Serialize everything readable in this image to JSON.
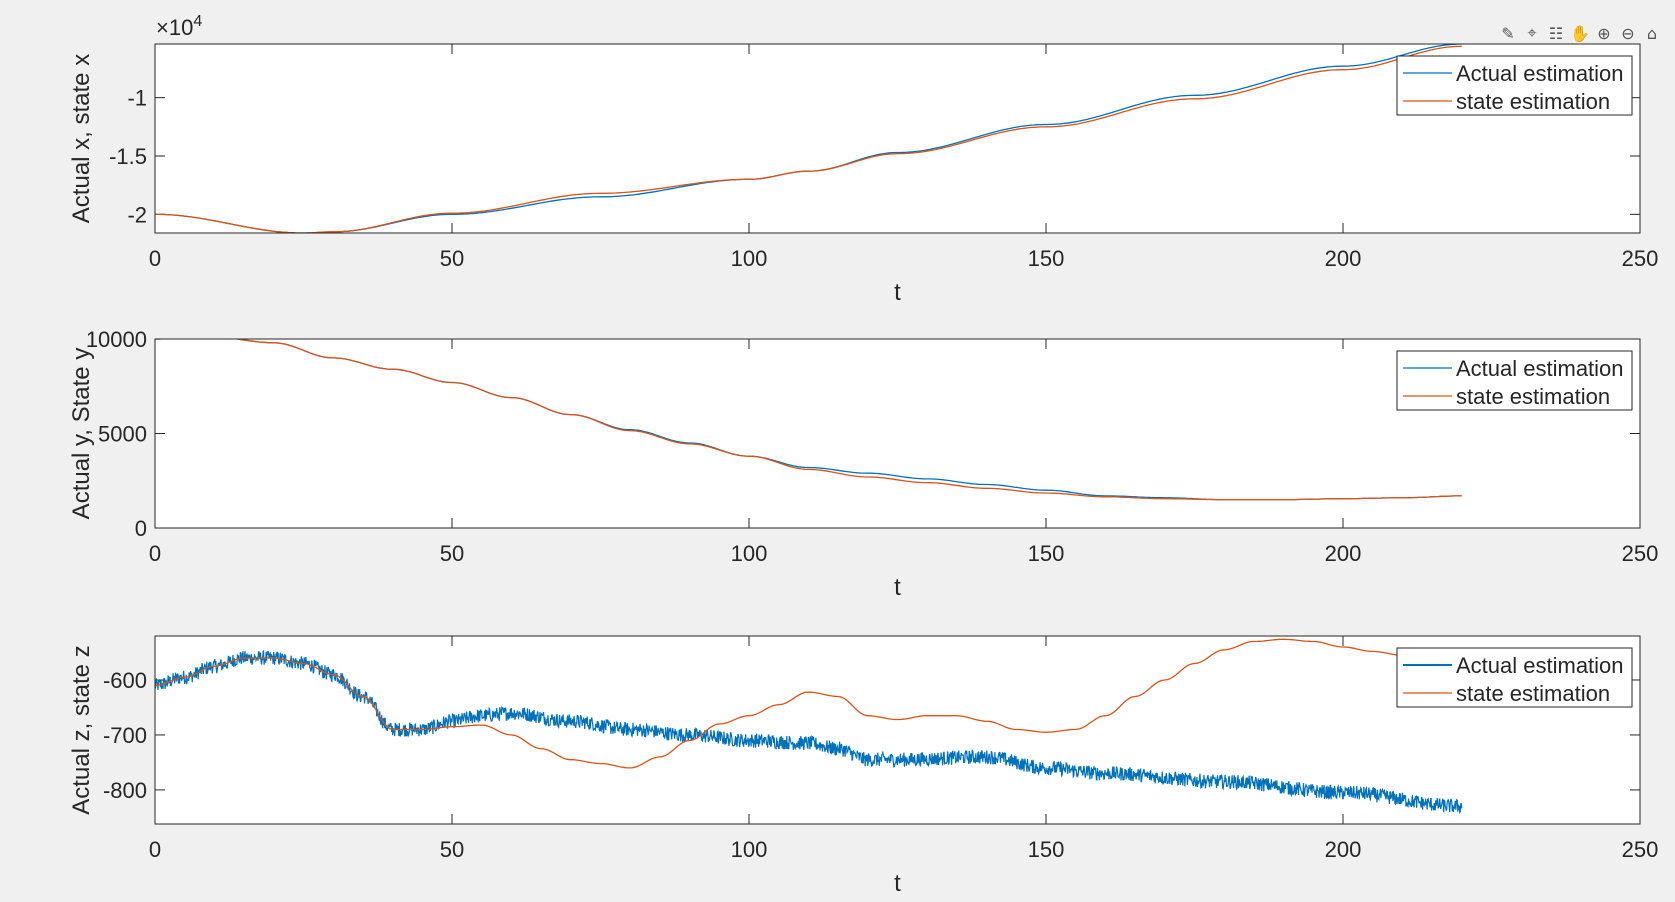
{
  "figure": {
    "background": "#f0f0f0",
    "toolbar": [
      {
        "name": "brush-icon",
        "glyph": "✎"
      },
      {
        "name": "data-tips-icon",
        "glyph": "⌖"
      },
      {
        "name": "legend-icon",
        "glyph": "☷"
      },
      {
        "name": "pan-hand-icon",
        "glyph": "✋"
      },
      {
        "name": "zoom-in-icon",
        "glyph": "⊕"
      },
      {
        "name": "zoom-out-icon",
        "glyph": "⊖"
      },
      {
        "name": "home-icon",
        "glyph": "⌂"
      }
    ]
  },
  "colors": {
    "actual": "#0072bd",
    "state": "#d95319"
  },
  "chart_data": [
    {
      "type": "line",
      "xlabel": "t",
      "ylabel": "Actual x, state x",
      "xlim": [
        0,
        250
      ],
      "ylim": [
        -21600,
        -5400
      ],
      "xticks": [
        0,
        50,
        100,
        150,
        200,
        250
      ],
      "yticks": [
        -10000,
        -15000,
        -20000
      ],
      "ytick_labels": [
        "-1",
        "-1.5",
        "-2"
      ],
      "exponent_label": "×10",
      "exponent_power": "4",
      "legend": {
        "position": "top-right"
      },
      "series": [
        {
          "name": "Actual estimation",
          "color": "#0072bd",
          "x": [
            0,
            25,
            30,
            50,
            75,
            100,
            110,
            125,
            150,
            175,
            200,
            220
          ],
          "y": [
            -20000,
            -21600,
            -21500,
            -20000,
            -18500,
            -17000,
            -16300,
            -14700,
            -12300,
            -9800,
            -7300,
            -5400
          ]
        },
        {
          "name": "state estimation",
          "color": "#d95319",
          "x": [
            0,
            25,
            30,
            50,
            75,
            100,
            110,
            125,
            150,
            175,
            200,
            220
          ],
          "y": [
            -20000,
            -21600,
            -21500,
            -19900,
            -18200,
            -17000,
            -16300,
            -14800,
            -12500,
            -10100,
            -7600,
            -5600
          ]
        }
      ]
    },
    {
      "type": "line",
      "xlabel": "t",
      "ylabel": "Actual y, State y",
      "xlim": [
        0,
        250
      ],
      "ylim": [
        0,
        10000
      ],
      "xticks": [
        0,
        50,
        100,
        150,
        200,
        250
      ],
      "yticks": [
        10000,
        5000,
        0
      ],
      "ytick_labels": [
        "10000",
        "5000",
        "0"
      ],
      "legend": {
        "position": "top-right"
      },
      "series": [
        {
          "name": "Actual estimation",
          "color": "#0072bd",
          "x": [
            0,
            10,
            20,
            30,
            40,
            50,
            60,
            70,
            80,
            90,
            100,
            110,
            120,
            130,
            140,
            150,
            160,
            170,
            180,
            190,
            200,
            210,
            220
          ],
          "y": [
            10000,
            10100,
            9800,
            9000,
            8400,
            7700,
            6900,
            6000,
            5200,
            4500,
            3800,
            3200,
            2900,
            2600,
            2300,
            2000,
            1700,
            1600,
            1500,
            1500,
            1550,
            1600,
            1700
          ]
        },
        {
          "name": "state estimation",
          "color": "#d95319",
          "x": [
            0,
            10,
            20,
            30,
            40,
            50,
            60,
            70,
            80,
            90,
            100,
            110,
            120,
            130,
            140,
            150,
            160,
            170,
            180,
            190,
            200,
            210,
            220
          ],
          "y": [
            10000,
            10100,
            9800,
            9000,
            8400,
            7700,
            6900,
            6000,
            5150,
            4450,
            3800,
            3100,
            2700,
            2400,
            2100,
            1850,
            1650,
            1550,
            1500,
            1500,
            1550,
            1600,
            1700
          ]
        }
      ]
    },
    {
      "type": "line",
      "xlabel": "t",
      "ylabel": "Actual z, state z",
      "xlim": [
        0,
        250
      ],
      "ylim": [
        -862,
        -520
      ],
      "xticks": [
        0,
        50,
        100,
        150,
        200,
        250
      ],
      "yticks": [
        -600,
        -700,
        -800
      ],
      "ytick_labels": [
        "-600",
        "-700",
        "-800"
      ],
      "legend": {
        "position": "top-right"
      },
      "series": [
        {
          "name": "Actual estimation",
          "color": "#0072bd",
          "noise_amplitude": 13,
          "x": [
            0,
            5,
            10,
            15,
            20,
            25,
            30,
            35,
            40,
            45,
            50,
            55,
            60,
            70,
            80,
            90,
            100,
            110,
            115,
            120,
            125,
            140,
            150,
            160,
            180,
            200,
            220
          ],
          "y": [
            -610,
            -595,
            -575,
            -560,
            -560,
            -570,
            -590,
            -630,
            -690,
            -690,
            -675,
            -665,
            -660,
            -675,
            -690,
            -700,
            -710,
            -715,
            -725,
            -745,
            -745,
            -740,
            -760,
            -770,
            -785,
            -805,
            -830
          ]
        },
        {
          "name": "state estimation",
          "color": "#d95319",
          "x": [
            0,
            5,
            10,
            15,
            20,
            25,
            30,
            35,
            40,
            45,
            50,
            55,
            60,
            65,
            70,
            75,
            80,
            85,
            90,
            95,
            100,
            105,
            110,
            115,
            120,
            125,
            130,
            135,
            140,
            145,
            150,
            155,
            160,
            165,
            170,
            175,
            180,
            185,
            190,
            195,
            200,
            205,
            210,
            215,
            220
          ],
          "y": [
            -610,
            -595,
            -575,
            -560,
            -560,
            -570,
            -590,
            -630,
            -690,
            -690,
            -685,
            -682,
            -700,
            -725,
            -745,
            -752,
            -760,
            -740,
            -710,
            -680,
            -665,
            -645,
            -622,
            -630,
            -665,
            -672,
            -665,
            -665,
            -675,
            -690,
            -695,
            -690,
            -665,
            -630,
            -600,
            -570,
            -545,
            -530,
            -526,
            -530,
            -540,
            -548,
            -555,
            -565,
            -578
          ]
        }
      ]
    }
  ]
}
